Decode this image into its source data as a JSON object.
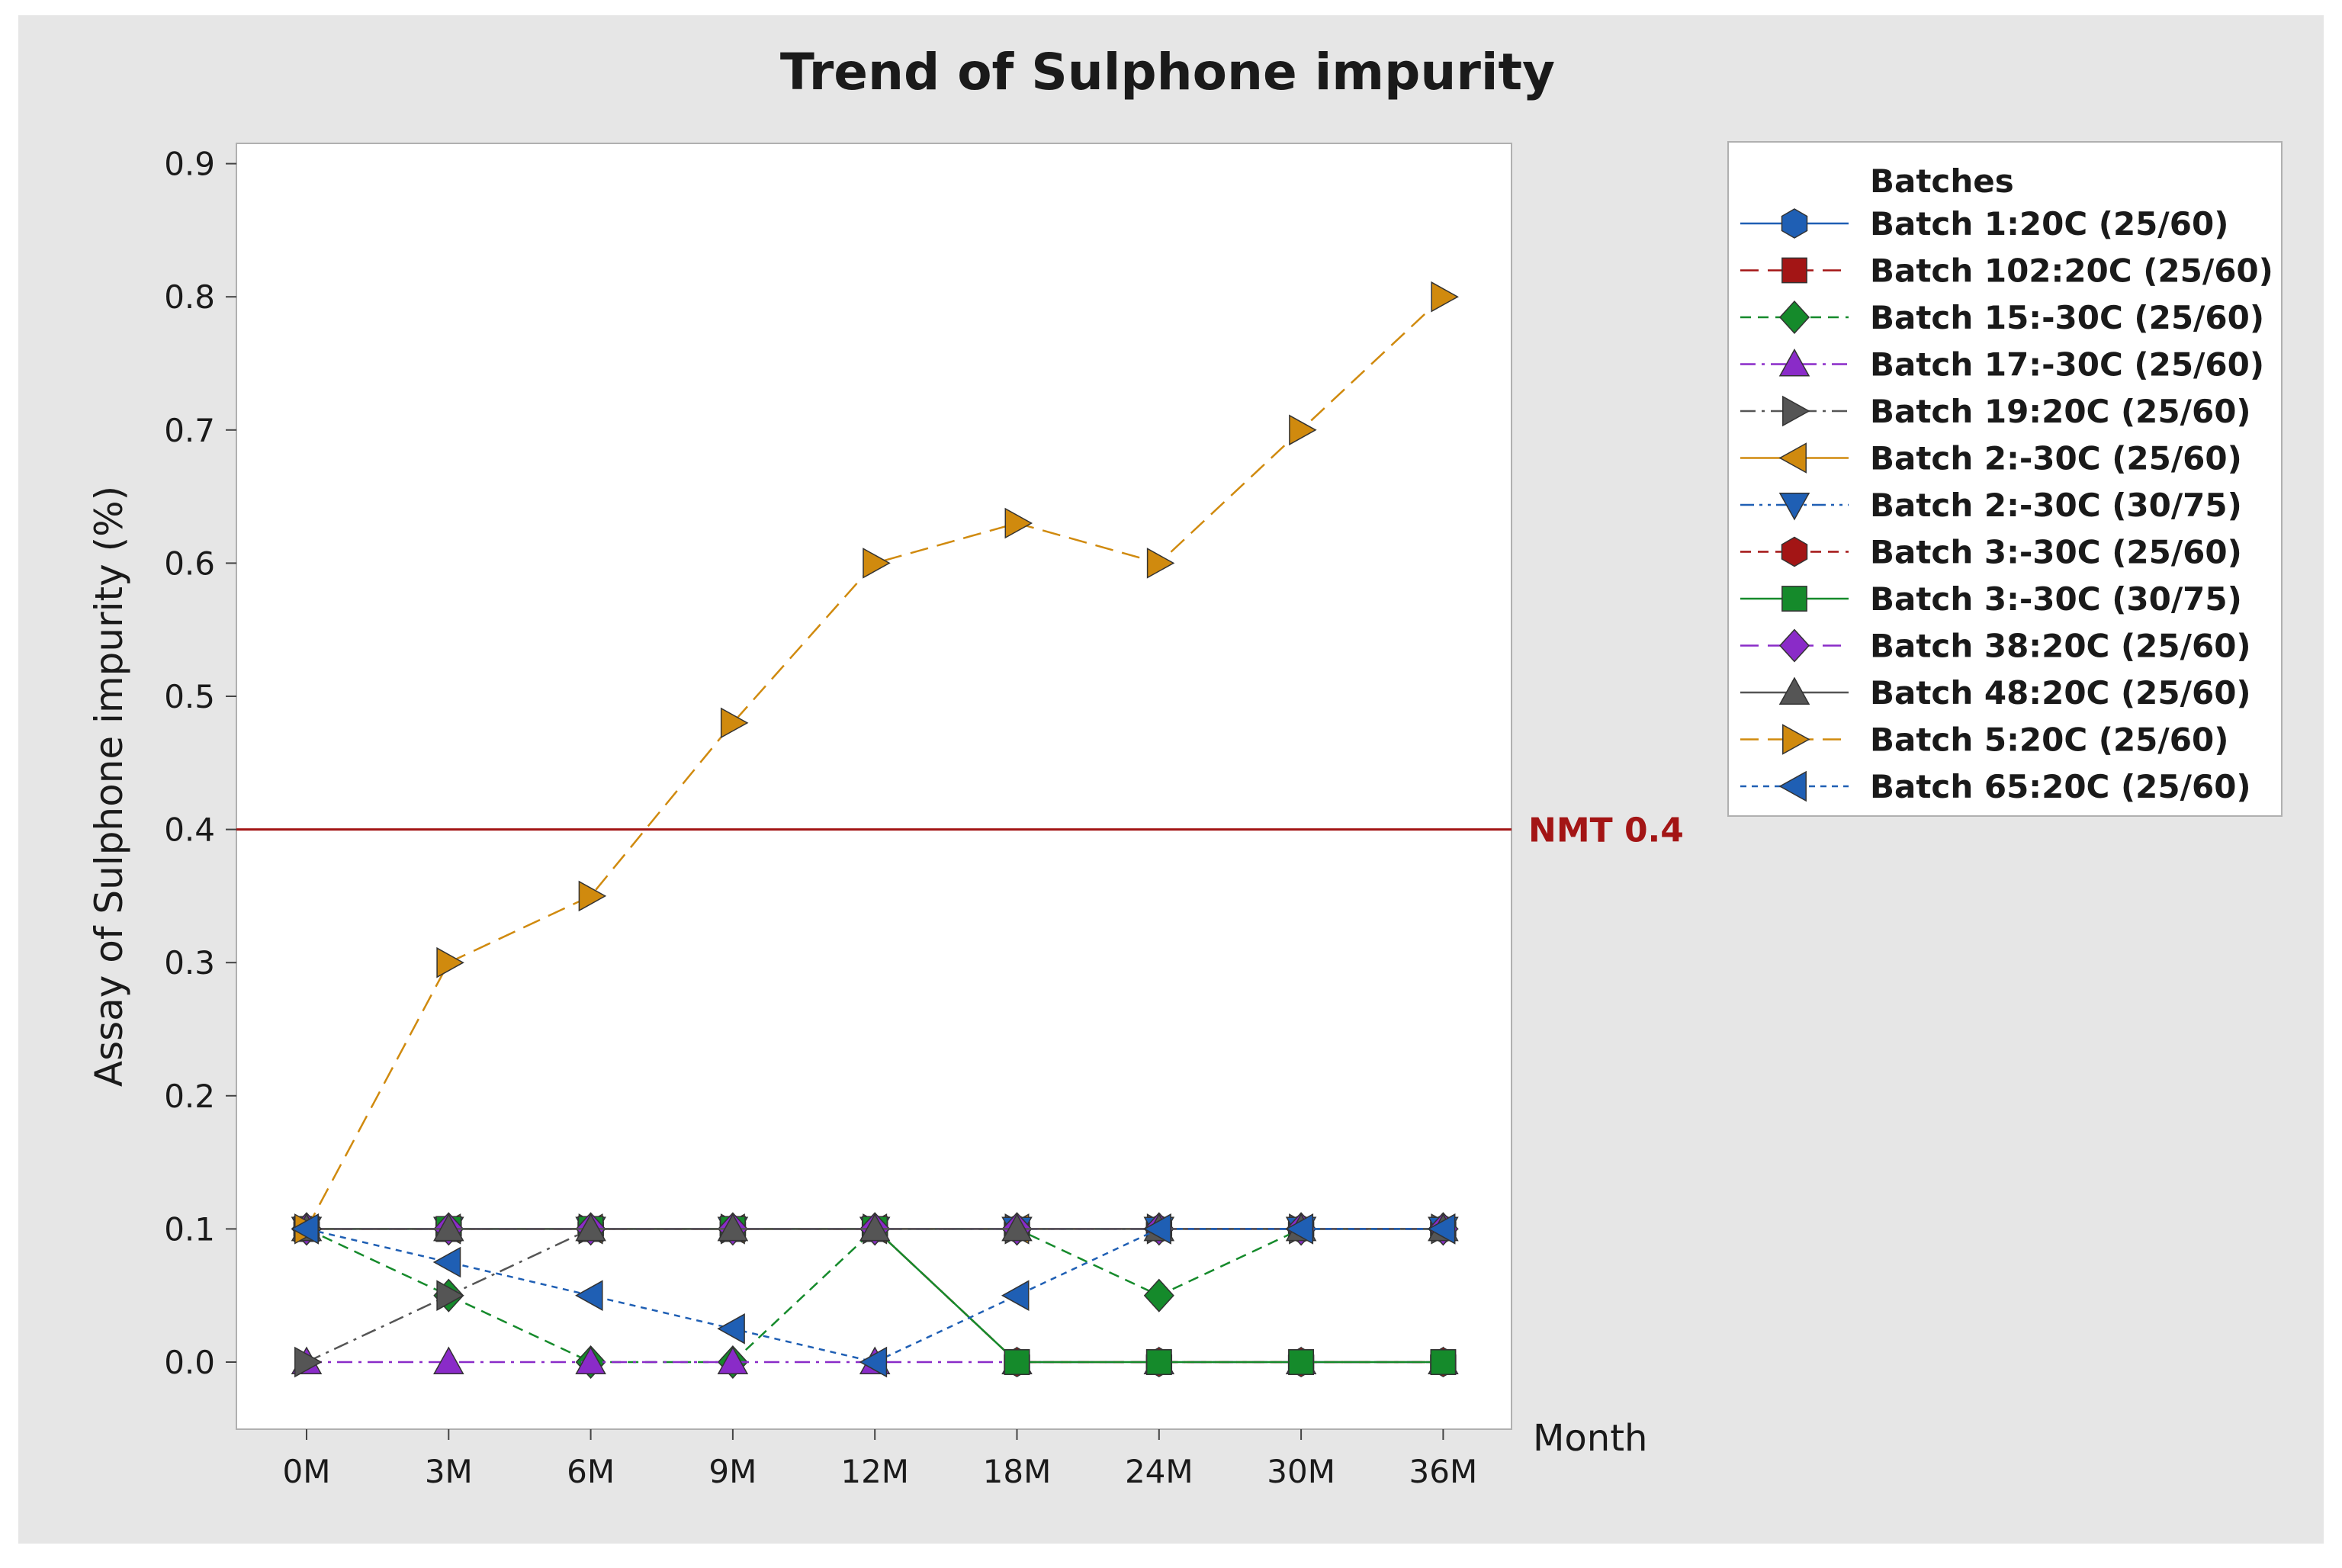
{
  "chart_data": {
    "type": "line",
    "title": "Trend of Sulphone impurity",
    "xlabel": "Month",
    "ylabel": "Assay of Sulphone impurity (%)",
    "categories": [
      "0M",
      "3M",
      "6M",
      "9M",
      "12M",
      "18M",
      "24M",
      "30M",
      "36M"
    ],
    "ylim": [
      -0.05,
      0.92
    ],
    "yticks": [
      0.0,
      0.1,
      0.2,
      0.3,
      0.4,
      0.5,
      0.6,
      0.7,
      0.8,
      0.9
    ],
    "ytick_labels": [
      "0.0",
      "0.1",
      "0.2",
      "0.3",
      "0.4",
      "0.5",
      "0.6",
      "0.7",
      "0.8",
      "0.9"
    ],
    "reference_line": {
      "value": 0.4,
      "label": "NMT 0.4",
      "color": "#a31515"
    },
    "legend_title": "Batches",
    "legend_position": "right",
    "series": [
      {
        "name": "Batch 1:20C (25/60)",
        "color": "#1f5fb4",
        "dash": "solid",
        "marker": "hexagon",
        "values": [
          0.1,
          0.1,
          0.1,
          0.1,
          0.1,
          0.1,
          0.1,
          0.1,
          0.1
        ]
      },
      {
        "name": "Batch 102:20C (25/60)",
        "color": "#a31515",
        "dash": "longdash",
        "marker": "square",
        "values": [
          0.1,
          0.1,
          0.1,
          0.1,
          0.1,
          0.0,
          0.0,
          0.0,
          0.0
        ]
      },
      {
        "name": "Batch 15:-30C (25/60)",
        "color": "#158a2b",
        "dash": "dash",
        "marker": "diamond",
        "values": [
          0.1,
          0.05,
          0.0,
          0.0,
          0.1,
          0.1,
          0.05,
          0.1,
          0.1
        ]
      },
      {
        "name": "Batch 17:-30C (25/60)",
        "color": "#8a2bc8",
        "dash": "dashdot",
        "marker": "triangle-up",
        "values": [
          0.0,
          0.0,
          0.0,
          0.0,
          0.0,
          0.0,
          0.0,
          0.0,
          0.0
        ]
      },
      {
        "name": "Batch 19:20C (25/60)",
        "color": "#555555",
        "dash": "dashdot",
        "marker": "triangle-right",
        "values": [
          0.0,
          0.05,
          0.1,
          0.1,
          0.1,
          0.1,
          0.1,
          0.1,
          0.1
        ]
      },
      {
        "name": "Batch 2:-30C (25/60)",
        "color": "#d08a0e",
        "dash": "solid",
        "marker": "triangle-left",
        "values": [
          0.1,
          0.1,
          0.1,
          0.1,
          0.1,
          0.1,
          0.1,
          0.1,
          0.1
        ]
      },
      {
        "name": "Batch 2:-30C (30/75)",
        "color": "#1f5fb4",
        "dash": "dashdotdot",
        "marker": "triangle-down",
        "values": [
          0.1,
          0.1,
          0.1,
          0.1,
          0.1,
          0.1,
          0.1,
          0.1,
          0.1
        ]
      },
      {
        "name": "Batch 3:-30C (25/60)",
        "color": "#a31515",
        "dash": "dash",
        "marker": "hexagon",
        "values": [
          0.1,
          0.1,
          0.1,
          0.1,
          0.1,
          0.0,
          0.0,
          0.0,
          0.0
        ]
      },
      {
        "name": "Batch 3:-30C (30/75)",
        "color": "#158a2b",
        "dash": "solid",
        "marker": "square",
        "values": [
          0.1,
          0.1,
          0.1,
          0.1,
          0.1,
          0.0,
          0.0,
          0.0,
          0.0
        ]
      },
      {
        "name": "Batch 38:20C (25/60)",
        "color": "#8a2bc8",
        "dash": "longdash",
        "marker": "diamond",
        "values": [
          0.1,
          0.1,
          0.1,
          0.1,
          0.1,
          0.1,
          0.1,
          0.1,
          0.1
        ]
      },
      {
        "name": "Batch 48:20C (25/60)",
        "color": "#555555",
        "dash": "solid",
        "marker": "triangle-up",
        "values": [
          0.1,
          0.1,
          0.1,
          0.1,
          0.1,
          0.1,
          0.1,
          0.1,
          0.1
        ]
      },
      {
        "name": "Batch 5:20C (25/60)",
        "color": "#d08a0e",
        "dash": "longdash",
        "marker": "triangle-right",
        "values": [
          0.1,
          0.3,
          0.35,
          0.48,
          0.6,
          0.63,
          0.6,
          0.7,
          0.8
        ]
      },
      {
        "name": "Batch 65:20C (25/60)",
        "color": "#1f5fb4",
        "dash": "shortdash",
        "marker": "triangle-left",
        "values": [
          0.1,
          0.075,
          0.05,
          0.025,
          0.0,
          0.05,
          0.1,
          0.1,
          0.1
        ]
      }
    ]
  }
}
